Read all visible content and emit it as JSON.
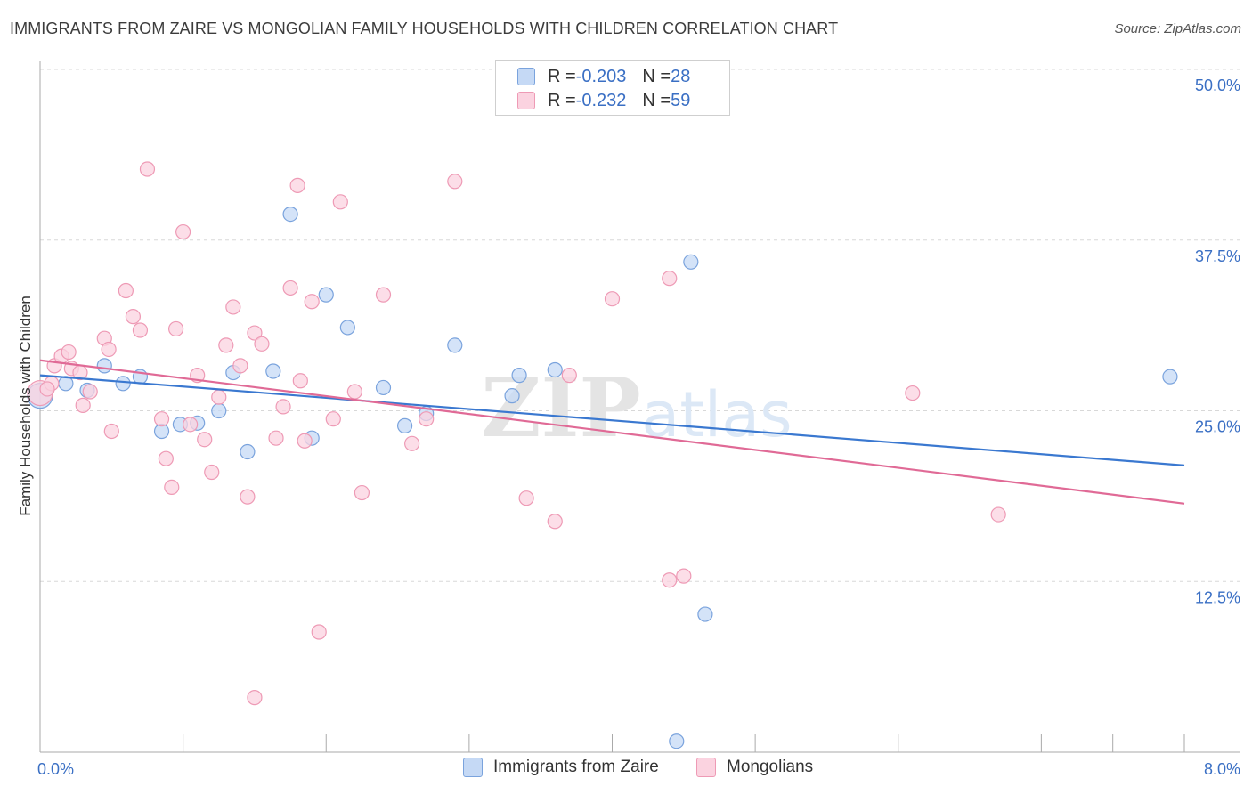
{
  "title": "IMMIGRANTS FROM ZAIRE VS MONGOLIAN FAMILY HOUSEHOLDS WITH CHILDREN CORRELATION CHART",
  "source": "Source: ZipAtlas.com",
  "watermark": {
    "zip": "ZIP",
    "atlas": "atlas"
  },
  "legend": [
    {
      "r_label": "R = ",
      "r_value": "-0.203",
      "n_label": "N = ",
      "n_value": "28"
    },
    {
      "r_label": "R = ",
      "r_value": "-0.232",
      "n_label": "N = ",
      "n_value": "59"
    }
  ],
  "colors": {
    "blue_fill": "#c5d9f5",
    "blue_stroke": "#7aa3dd",
    "blue_line": "#3a78d0",
    "pink_fill": "#fbd3e0",
    "pink_stroke": "#ee9ab5",
    "pink_line": "#e06a96",
    "tick_label": "#3a6fc4",
    "grid": "#d8d8d8"
  },
  "chart_data": {
    "type": "scatter",
    "title": "IMMIGRANTS FROM ZAIRE VS MONGOLIAN FAMILY HOUSEHOLDS WITH CHILDREN CORRELATION CHART",
    "xlabel": "",
    "ylabel": "Family Households with Children",
    "xlim": [
      0,
      8
    ],
    "ylim": [
      0,
      50
    ],
    "x_tick_labels": [
      "0.0%",
      "8.0%"
    ],
    "y_ticks": [
      12.5,
      25.0,
      37.5,
      50.0
    ],
    "y_tick_labels": [
      "12.5%",
      "25.0%",
      "37.5%",
      "50.0%"
    ],
    "series": [
      {
        "name": "Immigrants from Zaire",
        "color": "blue",
        "trend": {
          "x": [
            0,
            8
          ],
          "y": [
            27.6,
            21.0
          ]
        },
        "points": [
          [
            0.0,
            26.1
          ],
          [
            0.18,
            27.0
          ],
          [
            0.33,
            26.5
          ],
          [
            0.45,
            28.3
          ],
          [
            0.58,
            27.0
          ],
          [
            0.7,
            27.5
          ],
          [
            0.85,
            23.5
          ],
          [
            0.98,
            24.0
          ],
          [
            1.1,
            24.1
          ],
          [
            1.25,
            25.0
          ],
          [
            1.35,
            27.8
          ],
          [
            1.45,
            22.0
          ],
          [
            1.63,
            27.9
          ],
          [
            1.75,
            39.4
          ],
          [
            1.9,
            23.0
          ],
          [
            2.0,
            33.5
          ],
          [
            2.15,
            31.1
          ],
          [
            2.4,
            26.7
          ],
          [
            2.55,
            23.9
          ],
          [
            2.7,
            24.8
          ],
          [
            2.9,
            29.8
          ],
          [
            3.3,
            26.1
          ],
          [
            3.35,
            27.6
          ],
          [
            3.6,
            28.0
          ],
          [
            4.55,
            35.9
          ],
          [
            4.65,
            10.1
          ],
          [
            4.45,
            0.8
          ],
          [
            7.9,
            27.5
          ]
        ]
      },
      {
        "name": "Mongolians",
        "color": "pink",
        "trend": {
          "x": [
            0,
            8
          ],
          "y": [
            28.7,
            18.2
          ]
        },
        "points": [
          [
            0.0,
            26.3
          ],
          [
            0.08,
            27.0
          ],
          [
            0.1,
            28.3
          ],
          [
            0.15,
            29.0
          ],
          [
            0.2,
            29.3
          ],
          [
            0.22,
            28.1
          ],
          [
            0.28,
            27.8
          ],
          [
            0.3,
            25.4
          ],
          [
            0.35,
            26.4
          ],
          [
            0.45,
            30.3
          ],
          [
            0.48,
            29.5
          ],
          [
            0.5,
            23.5
          ],
          [
            0.6,
            33.8
          ],
          [
            0.65,
            31.9
          ],
          [
            0.7,
            30.9
          ],
          [
            0.75,
            42.7
          ],
          [
            0.85,
            24.4
          ],
          [
            0.88,
            21.5
          ],
          [
            0.92,
            19.4
          ],
          [
            0.95,
            31.0
          ],
          [
            1.0,
            38.1
          ],
          [
            1.05,
            24.0
          ],
          [
            1.1,
            27.6
          ],
          [
            1.15,
            22.9
          ],
          [
            1.2,
            20.5
          ],
          [
            1.25,
            26.0
          ],
          [
            1.3,
            29.8
          ],
          [
            1.35,
            32.6
          ],
          [
            1.4,
            28.3
          ],
          [
            1.45,
            18.7
          ],
          [
            1.5,
            30.7
          ],
          [
            1.55,
            29.9
          ],
          [
            1.65,
            23.0
          ],
          [
            1.7,
            25.3
          ],
          [
            1.75,
            34.0
          ],
          [
            1.8,
            41.5
          ],
          [
            1.82,
            27.2
          ],
          [
            1.85,
            22.8
          ],
          [
            1.9,
            33.0
          ],
          [
            1.95,
            8.8
          ],
          [
            2.05,
            24.4
          ],
          [
            2.1,
            40.3
          ],
          [
            2.2,
            26.4
          ],
          [
            2.25,
            19.0
          ],
          [
            2.4,
            33.5
          ],
          [
            2.6,
            22.6
          ],
          [
            2.7,
            24.4
          ],
          [
            2.9,
            41.8
          ],
          [
            1.5,
            4.0
          ],
          [
            3.4,
            18.6
          ],
          [
            3.6,
            16.9
          ],
          [
            3.7,
            27.6
          ],
          [
            4.0,
            33.2
          ],
          [
            4.4,
            34.7
          ],
          [
            4.4,
            12.6
          ],
          [
            4.5,
            12.9
          ],
          [
            6.1,
            26.3
          ],
          [
            6.7,
            17.4
          ],
          [
            0.05,
            26.6
          ]
        ]
      }
    ]
  },
  "bottom_legend": [
    "Immigrants from Zaire",
    "Mongolians"
  ]
}
